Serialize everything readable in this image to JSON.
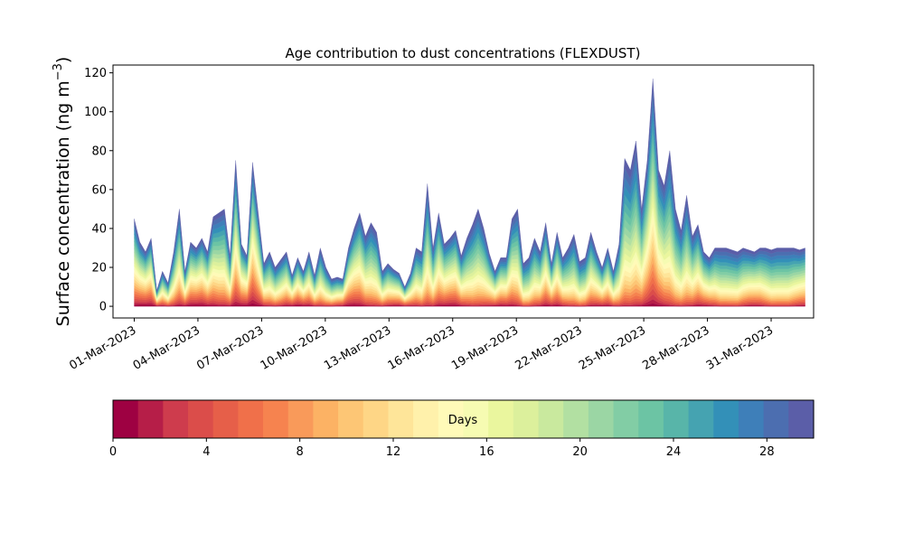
{
  "chart_data": {
    "type": "area",
    "title": "Age contribution to dust concentrations (FLEXDUST)",
    "ylabel": "Surface concentration (ng m$^{-3}$)",
    "ylabel_main": "Surface concentration (ng m",
    "ylabel_sup": "−3",
    "ylabel_close": ")",
    "xlabel": "",
    "x_start": "2023-03-01",
    "x_end": "2023-04-01",
    "xlim": [
      "2023-02-28",
      "2023-04-02"
    ],
    "ylim": [
      -6,
      124
    ],
    "yticks": [
      0,
      20,
      40,
      60,
      80,
      100,
      120
    ],
    "xticks": [
      "01-Mar-2023",
      "04-Mar-2023",
      "07-Mar-2023",
      "10-Mar-2023",
      "13-Mar-2023",
      "16-Mar-2023",
      "19-Mar-2023",
      "22-Mar-2023",
      "25-Mar-2023",
      "28-Mar-2023",
      "31-Mar-2023"
    ],
    "grid": false,
    "stacked": true,
    "layers": 30,
    "total_concentration": {
      "dates": [
        "2023-03-01",
        "2023-03-01",
        "2023-03-01",
        "2023-03-01",
        "2023-03-02",
        "2023-03-02",
        "2023-03-02",
        "2023-03-02",
        "2023-03-02",
        "2023-03-02",
        "2023-03-03",
        "2023-03-03",
        "2023-03-03",
        "2023-03-03",
        "2023-03-03",
        "2023-03-03",
        "2023-03-04",
        "2023-03-04",
        "2023-03-04",
        "2023-03-04",
        "2023-03-04",
        "2023-03-05",
        "2023-03-05",
        "2023-03-05",
        "2023-03-05",
        "2023-03-05",
        "2023-03-05",
        "2023-03-06",
        "2023-03-06",
        "2023-03-06",
        "2023-03-06",
        "2023-03-06",
        "2023-03-07",
        "2023-03-07",
        "2023-03-07",
        "2023-03-07",
        "2023-03-08",
        "2023-03-08",
        "2023-03-08",
        "2023-03-08",
        "2023-03-09",
        "2023-03-09",
        "2023-03-09",
        "2023-03-09",
        "2023-03-10",
        "2023-03-10",
        "2023-03-10",
        "2023-03-10",
        "2023-03-11",
        "2023-03-11",
        "2023-03-11",
        "2023-03-11",
        "2023-03-12",
        "2023-03-12",
        "2023-03-12",
        "2023-03-12",
        "2023-03-13",
        "2023-03-13",
        "2023-03-13",
        "2023-03-14",
        "2023-03-14",
        "2023-03-14",
        "2023-03-15",
        "2023-03-15",
        "2023-03-15",
        "2023-03-15",
        "2023-03-16",
        "2023-03-16",
        "2023-03-16",
        "2023-03-17",
        "2023-03-17",
        "2023-03-17",
        "2023-03-18",
        "2023-03-18",
        "2023-03-18",
        "2023-03-18",
        "2023-03-19",
        "2023-03-19",
        "2023-03-19",
        "2023-03-20",
        "2023-03-20",
        "2023-03-20",
        "2023-03-21",
        "2023-03-21",
        "2023-03-21",
        "2023-03-22",
        "2023-03-22",
        "2023-03-22",
        "2023-03-23",
        "2023-03-23",
        "2023-03-23",
        "2023-03-24",
        "2023-03-24",
        "2023-03-24",
        "2023-03-25",
        "2023-03-25",
        "2023-03-25",
        "2023-03-26",
        "2023-03-26",
        "2023-03-26",
        "2023-03-26",
        "2023-03-26",
        "2023-03-27",
        "2023-03-27",
        "2023-03-27",
        "2023-03-27",
        "2023-03-28",
        "2023-03-28",
        "2023-03-28",
        "2023-03-28",
        "2023-03-29",
        "2023-03-29",
        "2023-03-29",
        "2023-03-30",
        "2023-03-30",
        "2023-03-30",
        "2023-03-31",
        "2023-03-31",
        "2023-03-31",
        "2023-04-01"
      ],
      "values": [
        45,
        33,
        28,
        35,
        8,
        18,
        12,
        28,
        50,
        18,
        33,
        30,
        35,
        28,
        46,
        48,
        50,
        26,
        75,
        32,
        26,
        74,
        48,
        22,
        28,
        20,
        24,
        28,
        16,
        25,
        18,
        28,
        16,
        30,
        20,
        14,
        15,
        14,
        30,
        40,
        48,
        36,
        43,
        38,
        18,
        22,
        19,
        17,
        10,
        17,
        30,
        28,
        63,
        30,
        48,
        32,
        35,
        39,
        26,
        35,
        42,
        50,
        40,
        27,
        18,
        25,
        25,
        45,
        50,
        22,
        25,
        35,
        28,
        43,
        22,
        38,
        25,
        30,
        37,
        23,
        25,
        38,
        28,
        20,
        30,
        18,
        32,
        76,
        70,
        85,
        50,
        75,
        117,
        70,
        62,
        80,
        50,
        39,
        57,
        36,
        42,
        28,
        25,
        30,
        30,
        30,
        29,
        28,
        30,
        29,
        28,
        30,
        30,
        29,
        30,
        30,
        30,
        30,
        29,
        30
      ]
    },
    "colorbar": {
      "label": "Days",
      "range": [
        0,
        30
      ],
      "ticks": [
        0,
        4,
        8,
        12,
        16,
        20,
        24,
        28
      ],
      "colors": [
        "#9e0142",
        "#b61e48",
        "#ce3c4d",
        "#db4d4a",
        "#e65f49",
        "#f0704a",
        "#f6834f",
        "#f99a5a",
        "#fcb264",
        "#fdc675",
        "#fed686",
        "#fee599",
        "#fff1ab",
        "#fffab8",
        "#f6fbb2",
        "#eaf69e",
        "#dcf09c",
        "#c9e99e",
        "#b2e0a2",
        "#9bd6a4",
        "#82cda5",
        "#6cc4a4",
        "#58b5a9",
        "#45a3b1",
        "#3390b8",
        "#3e7fb9",
        "#4c6eb0",
        "#5b5ea8"
      ]
    }
  }
}
